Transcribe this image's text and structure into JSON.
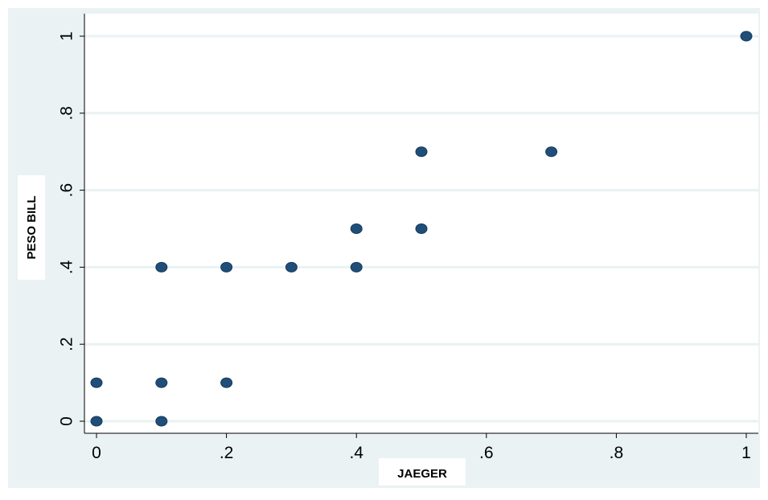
{
  "chart_data": {
    "type": "scatter",
    "xlabel": "JAEGER",
    "ylabel": "PESO BILL",
    "xlim": [
      0,
      1
    ],
    "ylim": [
      0,
      1
    ],
    "x_ticks": [
      {
        "value": 0,
        "label": "0"
      },
      {
        "value": 0.2,
        "label": ".2"
      },
      {
        "value": 0.4,
        "label": ".4"
      },
      {
        "value": 0.6,
        "label": ".6"
      },
      {
        "value": 0.8,
        "label": ".8"
      },
      {
        "value": 1,
        "label": "1"
      }
    ],
    "y_ticks": [
      {
        "value": 0,
        "label": "0"
      },
      {
        "value": 0.2,
        "label": ".2"
      },
      {
        "value": 0.4,
        "label": ".4"
      },
      {
        "value": 0.6,
        "label": ".6"
      },
      {
        "value": 0.8,
        "label": ".8"
      },
      {
        "value": 1,
        "label": "1"
      }
    ],
    "grid": "horizontal",
    "marker_color": "#1f4e79",
    "background_outer": "#eaf2f3",
    "background_plot": "#ffffff",
    "gridline_color": "#eaf2f3",
    "points": [
      {
        "x": 0,
        "y": 0
      },
      {
        "x": 0,
        "y": 0.1
      },
      {
        "x": 0.1,
        "y": 0
      },
      {
        "x": 0.1,
        "y": 0.1
      },
      {
        "x": 0.1,
        "y": 0.4
      },
      {
        "x": 0.2,
        "y": 0.1
      },
      {
        "x": 0.2,
        "y": 0.4
      },
      {
        "x": 0.3,
        "y": 0.4
      },
      {
        "x": 0.4,
        "y": 0.4
      },
      {
        "x": 0.4,
        "y": 0.5
      },
      {
        "x": 0.5,
        "y": 0.5
      },
      {
        "x": 0.5,
        "y": 0.7
      },
      {
        "x": 0.7,
        "y": 0.7
      },
      {
        "x": 1,
        "y": 1
      }
    ]
  }
}
